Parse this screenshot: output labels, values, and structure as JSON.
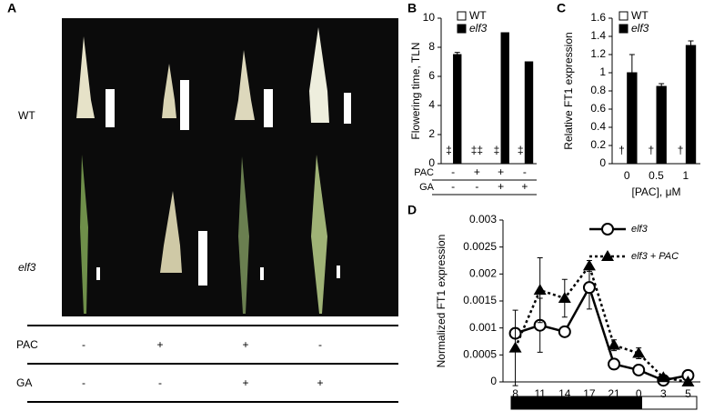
{
  "panel_a": {
    "label": "A",
    "rows": [
      "WT",
      "elf3"
    ],
    "conditions": [
      {
        "name": "PAC",
        "values": [
          "-",
          "+",
          "+",
          "-"
        ]
      },
      {
        "name": "GA",
        "values": [
          "-",
          "-",
          "+",
          "+"
        ]
      }
    ]
  },
  "chart_data": [
    {
      "type": "bar",
      "label": "B",
      "y_label": "Flowering time, TLN",
      "ylim": [
        0,
        10
      ],
      "yticks": [
        0,
        2,
        4,
        6,
        8,
        10
      ],
      "categories": [
        null,
        null,
        null,
        null
      ],
      "series": [
        {
          "name": "WT",
          "color": "#ffffff",
          "values": [
            null,
            null,
            null,
            null
          ],
          "errors": [
            null,
            null,
            null,
            null
          ]
        },
        {
          "name": "elf3",
          "color": "#000000",
          "values": [
            7.5,
            null,
            9,
            7
          ],
          "errors": [
            0.15,
            null,
            null,
            null
          ]
        }
      ],
      "symbols": [
        "‡",
        "‡‡",
        "‡",
        "‡"
      ],
      "conditions": [
        {
          "name": "PAC",
          "values": [
            "-",
            "+",
            "+",
            "-"
          ]
        },
        {
          "name": "GA",
          "values": [
            "-",
            "-",
            "+",
            "+"
          ]
        }
      ]
    },
    {
      "type": "bar",
      "label": "C",
      "y_label": "Relative FT1 expression",
      "x_label": "[PAC], μM",
      "ylim": [
        0,
        1.6
      ],
      "yticks": [
        0,
        0.2,
        0.4,
        0.6,
        0.8,
        1,
        1.2,
        1.4,
        1.6
      ],
      "categories": [
        "0",
        "0.5",
        "1"
      ],
      "series": [
        {
          "name": "WT",
          "color": "#ffffff",
          "values": [
            null,
            null,
            null
          ],
          "errors": [
            null,
            null,
            null
          ]
        },
        {
          "name": "elf3",
          "color": "#000000",
          "values": [
            1.0,
            0.85,
            1.3
          ],
          "errors": [
            0.2,
            0.03,
            0.05
          ]
        }
      ],
      "symbols": [
        "†",
        "†",
        "†"
      ]
    },
    {
      "type": "line",
      "label": "D",
      "y_label": "Normalized FT1 expression",
      "ylim": [
        0,
        0.003
      ],
      "yticks": [
        0,
        0.0005,
        0.001,
        0.0015,
        0.002,
        0.0025,
        0.003
      ],
      "categories": [
        "8",
        "11",
        "14",
        "17",
        "21",
        "0",
        "3",
        "5"
      ],
      "series": [
        {
          "name": "elf3",
          "color": "#000000",
          "marker": "circle",
          "dashed": false,
          "values": [
            0.0009,
            0.00105,
            0.00093,
            0.00175,
            0.00033,
            0.00022,
            3e-05,
            0.00012
          ],
          "errors": [
            0.0001,
            0.0005,
            5e-05,
            0.0004,
            0.0001,
            0.0001,
            2e-05,
            3e-05
          ]
        },
        {
          "name": "elf3 + PAC",
          "color": "#000000",
          "marker": "triangle",
          "dashed": true,
          "values": [
            0.00063,
            0.0017,
            0.00155,
            0.00215,
            0.00068,
            0.00053,
            8e-05,
            0.0
          ],
          "errors": [
            0.0007,
            0.0006,
            0.00035,
            0.0001,
            0.0001,
            0.0001,
            3e-05,
            2e-05
          ]
        }
      ]
    }
  ]
}
